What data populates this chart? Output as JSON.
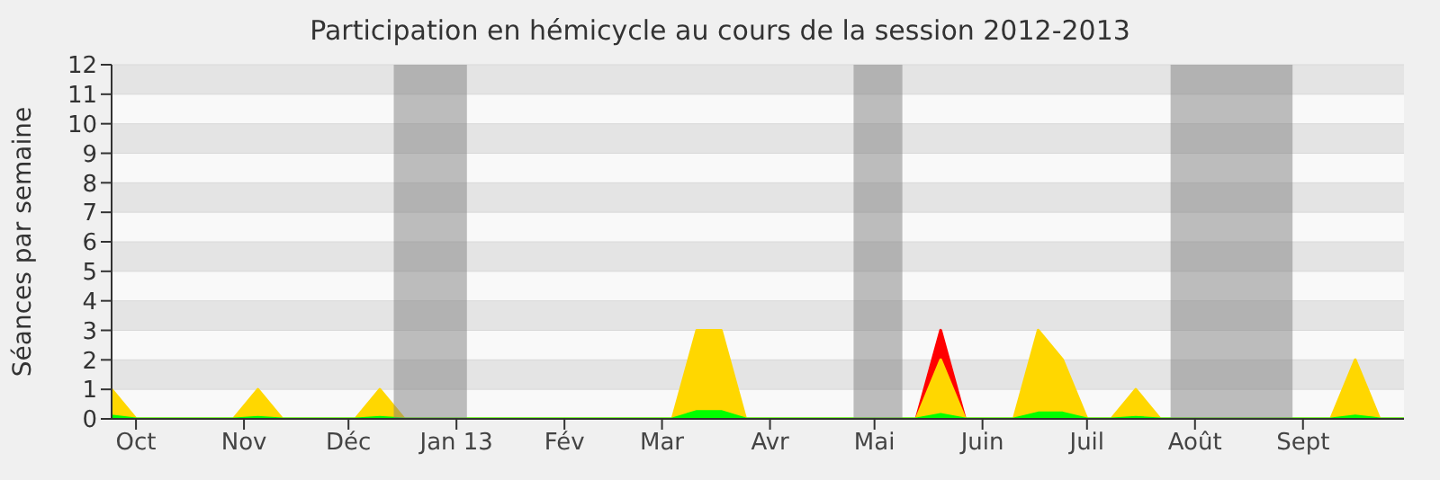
{
  "chart_data": {
    "type": "area",
    "title": "Participation en hémicycle au cours de la session 2012-2013",
    "ylabel": "Séances par semaine",
    "x": [
      "2012-09-24",
      "2012-10-01",
      "2012-10-08",
      "2012-10-15",
      "2012-10-22",
      "2012-10-29",
      "2012-11-05",
      "2012-11-12",
      "2012-11-19",
      "2012-11-26",
      "2012-12-03",
      "2012-12-10",
      "2012-12-17",
      "2012-12-24",
      "2012-12-31",
      "2013-01-07",
      "2013-01-14",
      "2013-01-21",
      "2013-01-28",
      "2013-02-04",
      "2013-02-11",
      "2013-02-18",
      "2013-02-25",
      "2013-03-04",
      "2013-03-11",
      "2013-03-18",
      "2013-03-25",
      "2013-04-01",
      "2013-04-08",
      "2013-04-15",
      "2013-04-22",
      "2013-04-29",
      "2013-05-06",
      "2013-05-13",
      "2013-05-20",
      "2013-05-27",
      "2013-06-03",
      "2013-06-10",
      "2013-06-17",
      "2013-06-24",
      "2013-07-01",
      "2013-07-08",
      "2013-07-15",
      "2013-07-22",
      "2013-07-29",
      "2013-08-05",
      "2013-08-12",
      "2013-08-19",
      "2013-08-26",
      "2013-09-02",
      "2013-09-09",
      "2013-09-16",
      "2013-09-23",
      "2013-09-30"
    ],
    "series": [
      {
        "color": "#ff0000",
        "values": [
          null,
          null,
          null,
          null,
          null,
          null,
          null,
          null,
          null,
          null,
          null,
          null,
          null,
          null,
          null,
          null,
          null,
          null,
          null,
          null,
          null,
          null,
          null,
          null,
          null,
          null,
          null,
          null,
          null,
          null,
          null,
          null,
          null,
          0,
          3,
          0,
          null,
          null,
          null,
          null,
          null,
          null,
          null,
          null,
          null,
          null,
          null,
          null,
          null,
          null,
          null,
          null,
          null,
          null
        ]
      },
      {
        "color": "#ffd700",
        "values": [
          1,
          0,
          0,
          0,
          0,
          0,
          1,
          0,
          0,
          0,
          0,
          1,
          0,
          0,
          0,
          0,
          0,
          0,
          0,
          0,
          0,
          0,
          0,
          0,
          3,
          3,
          0,
          0,
          0,
          0,
          0,
          0,
          0,
          0,
          2,
          0,
          0,
          0,
          3,
          2,
          0,
          0,
          1,
          0,
          0,
          0,
          0,
          0,
          0,
          0,
          0,
          2,
          0,
          0
        ]
      },
      {
        "color": "#00ff00",
        "values": [
          0.1,
          0,
          0,
          0,
          0,
          0,
          0.05,
          0,
          0,
          0,
          0,
          0.05,
          0,
          0,
          0,
          0,
          0,
          0,
          0,
          0,
          0,
          0,
          0,
          0,
          0.25,
          0.25,
          0,
          0,
          0,
          0,
          0,
          0,
          0,
          0,
          0.15,
          0,
          0,
          0,
          0.2,
          0.2,
          0,
          0,
          0.05,
          0,
          0,
          0,
          0,
          0,
          0,
          0,
          0,
          0.1,
          0,
          0
        ]
      }
    ],
    "xlim": [
      "2012-09-24",
      "2013-09-30"
    ],
    "xticks": [
      {
        "value": "2012-10-01",
        "label": "Oct"
      },
      {
        "value": "2012-11-01",
        "label": "Nov"
      },
      {
        "value": "2012-12-01",
        "label": "Déc"
      },
      {
        "value": "2013-01-01",
        "label": "Jan 13"
      },
      {
        "value": "2013-02-01",
        "label": "Fév"
      },
      {
        "value": "2013-03-01",
        "label": "Mar"
      },
      {
        "value": "2013-04-01",
        "label": "Avr"
      },
      {
        "value": "2013-05-01",
        "label": "Mai"
      },
      {
        "value": "2013-06-01",
        "label": "Juin"
      },
      {
        "value": "2013-07-01",
        "label": "Juil"
      },
      {
        "value": "2013-08-01",
        "label": "Août"
      },
      {
        "value": "2013-09-01",
        "label": "Sept"
      }
    ],
    "ylim": [
      0,
      12
    ],
    "yticks": [
      0,
      1,
      2,
      3,
      4,
      5,
      6,
      7,
      8,
      9,
      10,
      11,
      12
    ],
    "bands": [
      {
        "axis": "x",
        "from": "2012-12-14",
        "to": "2013-01-04",
        "color": "#808080"
      },
      {
        "axis": "x",
        "from": "2013-04-25",
        "to": "2013-05-09",
        "color": "#808080"
      },
      {
        "axis": "x",
        "from": "2013-07-25",
        "to": "2013-08-29",
        "color": "#808080"
      }
    ],
    "grid": "y"
  }
}
